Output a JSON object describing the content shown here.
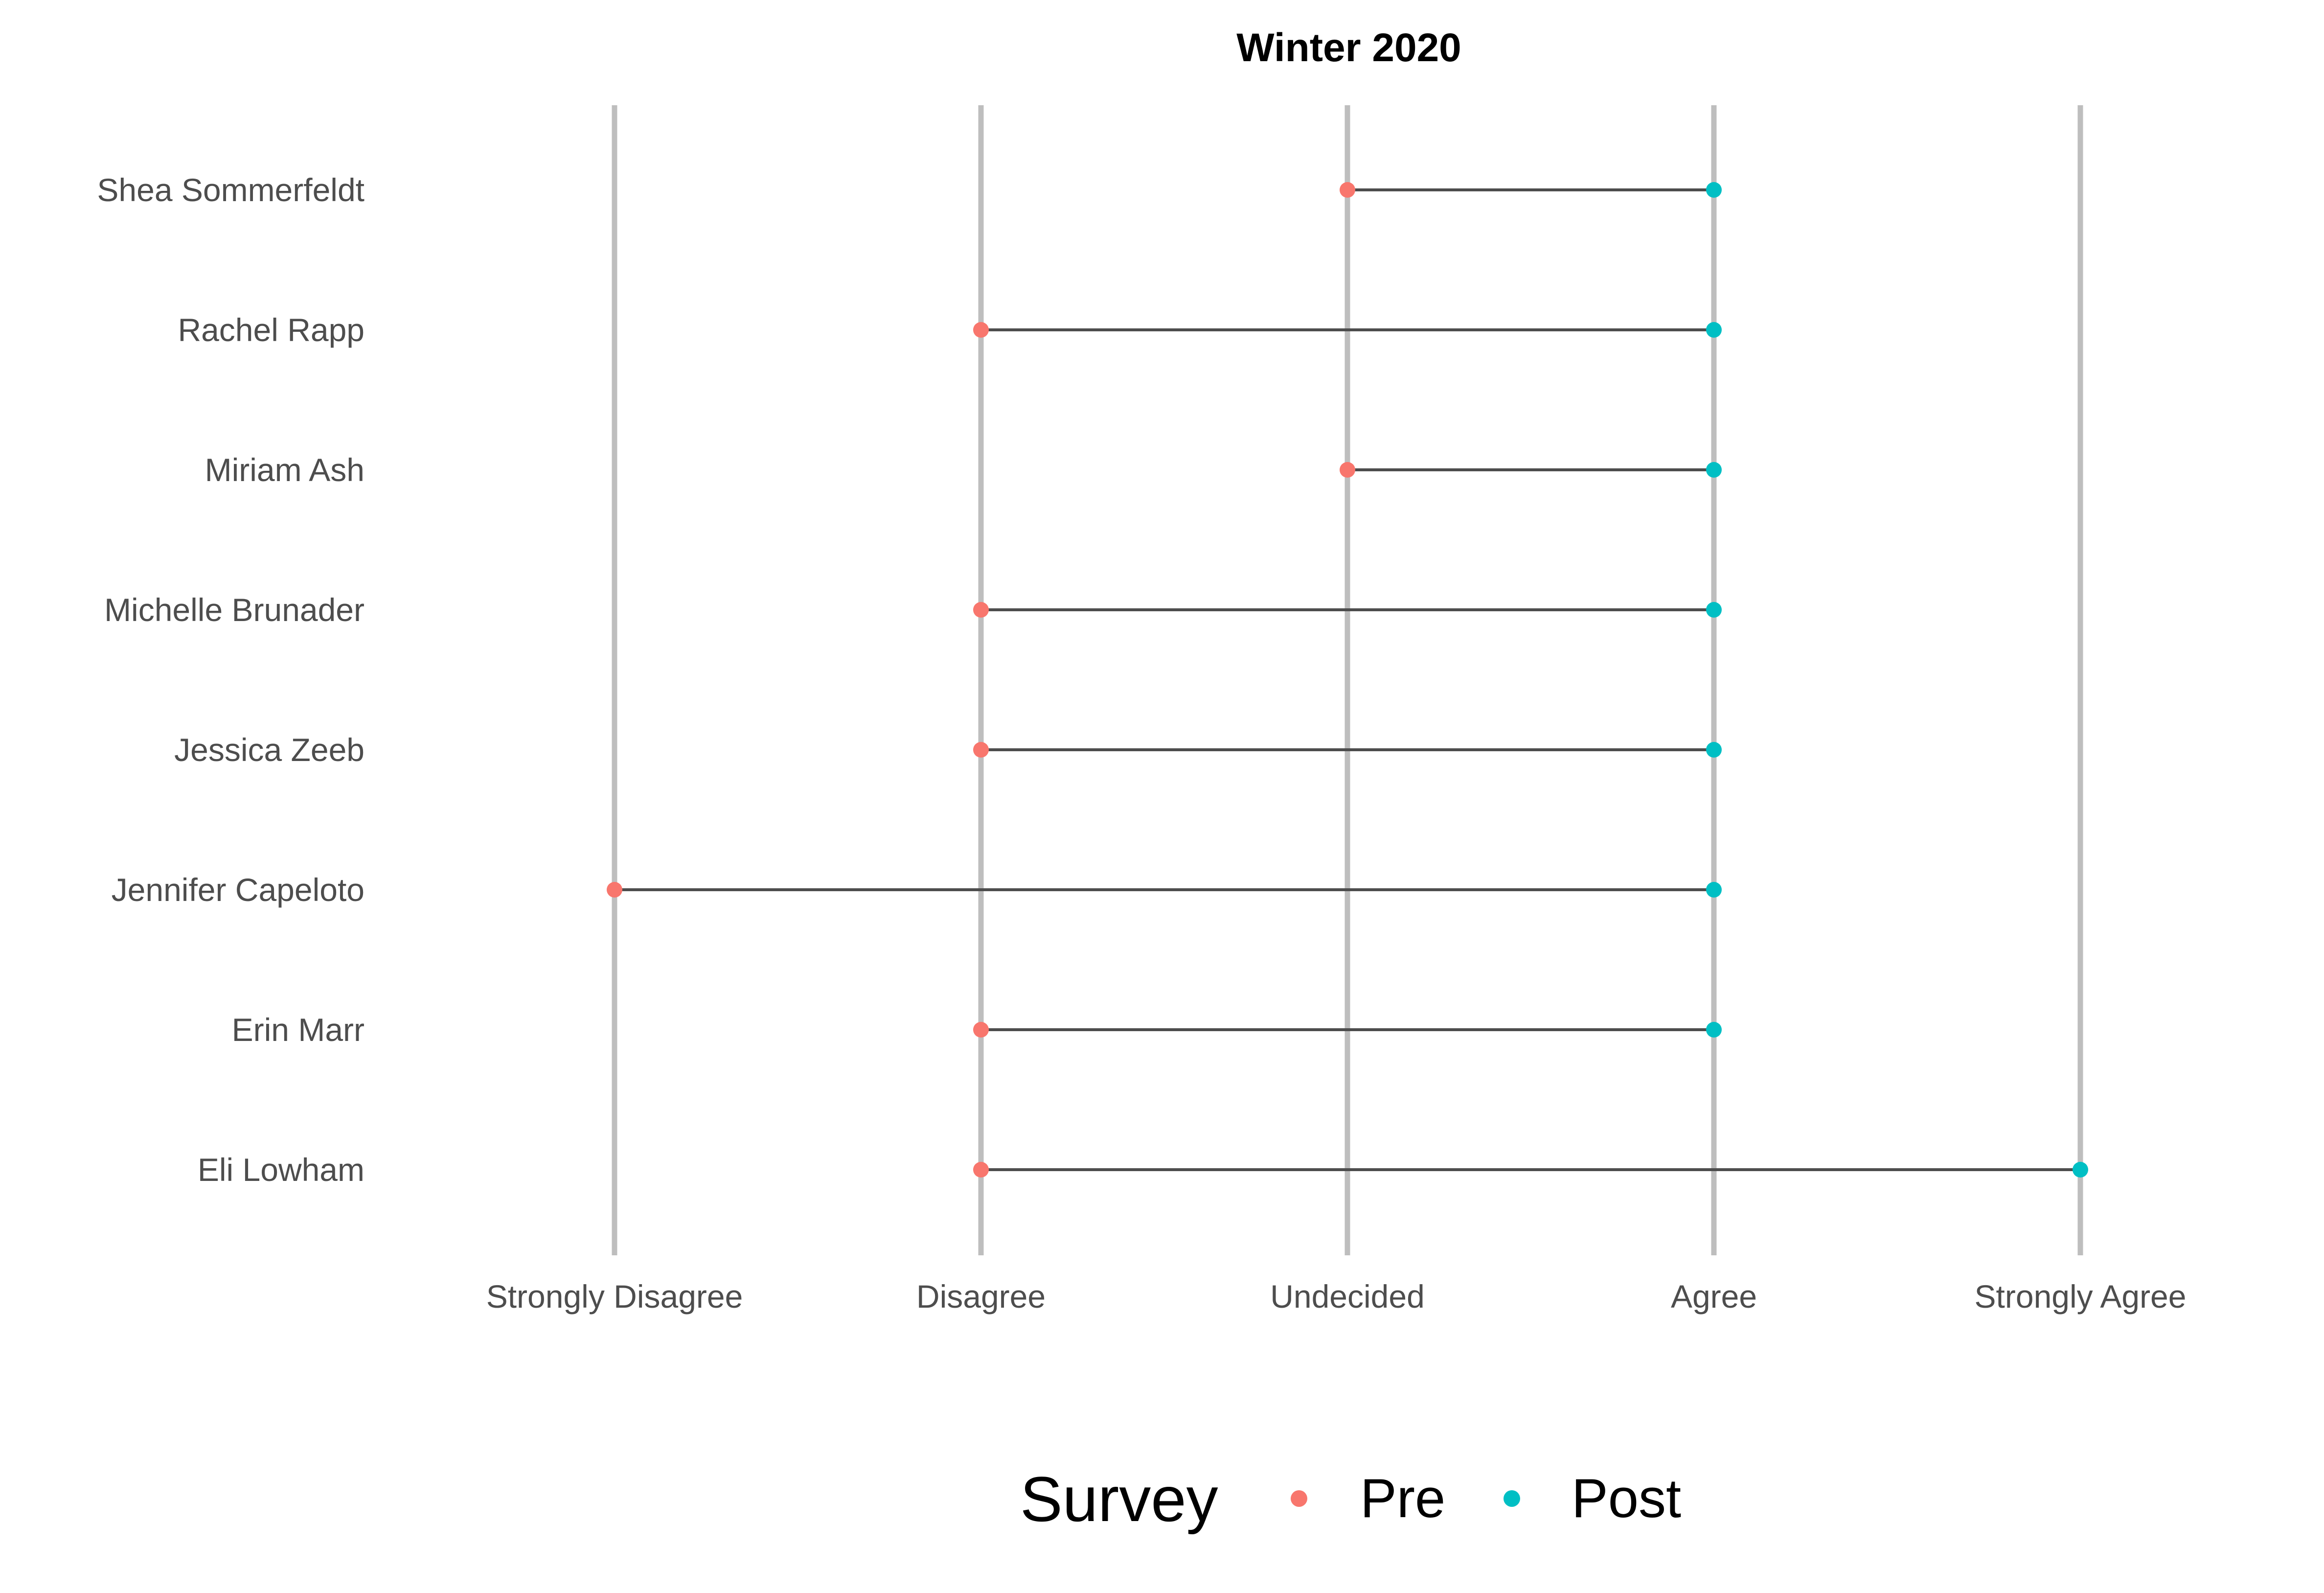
{
  "chart_data": {
    "type": "dumbbell",
    "title": "Winter 2020",
    "xlabel": "",
    "ylabel": "",
    "x_categories": [
      "Strongly Disagree",
      "Disagree",
      "Undecided",
      "Agree",
      "Strongly Agree"
    ],
    "grid": "vertical major lines at each x category",
    "legend": {
      "title": "Survey",
      "placement": "bottom",
      "items": [
        {
          "name": "Pre",
          "color": "#F8766D"
        },
        {
          "name": "Post",
          "color": "#00BFC4"
        }
      ]
    },
    "rows": [
      {
        "name": "Shea Sommerfeldt",
        "pre": "Undecided",
        "post": "Agree"
      },
      {
        "name": "Rachel Rapp",
        "pre": "Disagree",
        "post": "Agree"
      },
      {
        "name": "Miriam Ash",
        "pre": "Undecided",
        "post": "Agree"
      },
      {
        "name": "Michelle Brunader",
        "pre": "Disagree",
        "post": "Agree"
      },
      {
        "name": "Jessica Zeeb",
        "pre": "Disagree",
        "post": "Agree"
      },
      {
        "name": "Jennifer Capeloto",
        "pre": "Strongly Disagree",
        "post": "Agree"
      },
      {
        "name": "Erin Marr",
        "pre": "Disagree",
        "post": "Agree"
      },
      {
        "name": "Eli Lowham",
        "pre": "Disagree",
        "post": "Strongly Agree"
      }
    ],
    "colors": {
      "pre": "#F8766D",
      "post": "#00BFC4",
      "segment": "#4d4d4d",
      "grid": "#bebebe"
    }
  }
}
